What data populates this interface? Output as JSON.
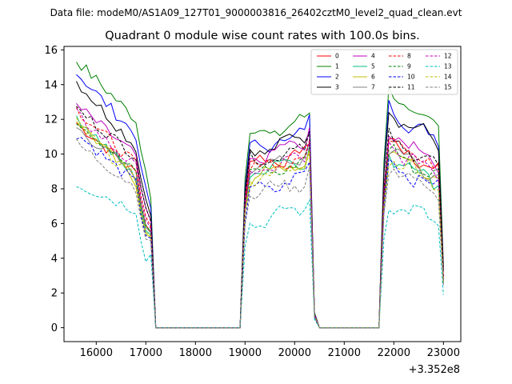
{
  "suptitle": "Data file: modeM0/AS1A09_127T01_9000003816_26402cztM0_level2_quad_clean.evt",
  "chart_data": {
    "type": "line",
    "title": "Quadrant 0 module wise count rates with 100.0s bins.",
    "xlabel": "",
    "ylabel": "",
    "x_offset_label": "+3.352e8",
    "xlim": [
      15350,
      23350
    ],
    "ylim": [
      -0.8,
      16.2
    ],
    "xticks": [
      16000,
      17000,
      18000,
      19000,
      20000,
      21000,
      22000,
      23000
    ],
    "yticks": [
      0,
      2,
      4,
      6,
      8,
      10,
      12,
      14,
      16
    ],
    "legend_position": "top-right",
    "segments": [
      {
        "start": 15600,
        "end": 17100,
        "level_end": 16800
      },
      {
        "start": 19000,
        "end": 20300
      },
      {
        "start": 21800,
        "end": 23000
      }
    ],
    "series": [
      {
        "name": "0",
        "color": "#ff0000",
        "style": "solid",
        "base": 10.4,
        "s1": [
          11.8,
          8.9
        ],
        "s2": 9.3,
        "s3": 10.8
      },
      {
        "name": "1",
        "color": "#008000",
        "style": "solid",
        "base": 13.0,
        "s1": [
          15.4,
          12.0
        ],
        "s2": 11.0,
        "s3": 13.6
      },
      {
        "name": "2",
        "color": "#0000ff",
        "style": "solid",
        "base": 11.9,
        "s1": [
          14.7,
          11.1
        ],
        "s2": 10.3,
        "s3": 12.8
      },
      {
        "name": "3",
        "color": "#000000",
        "style": "solid",
        "base": 12.1,
        "s1": [
          14.2,
          10.4
        ],
        "s2": 10.1,
        "s3": 12.7
      },
      {
        "name": "4",
        "color": "#bf00bf",
        "style": "solid",
        "base": 11.1,
        "s1": [
          12.8,
          9.9
        ],
        "s2": 9.7,
        "s3": 11.4
      },
      {
        "name": "5",
        "color": "#00bf80",
        "style": "solid",
        "base": 10.0,
        "s1": [
          12.2,
          8.6
        ],
        "s2": 8.9,
        "s3": 10.1
      },
      {
        "name": "6",
        "color": "#bfbf00",
        "style": "solid",
        "base": 9.9,
        "s1": [
          12.0,
          8.4
        ],
        "s2": 8.6,
        "s3": 10.3
      },
      {
        "name": "7",
        "color": "#808080",
        "style": "solid",
        "base": 10.4,
        "s1": [
          11.5,
          8.8
        ],
        "s2": 9.1,
        "s3": 10.5
      },
      {
        "name": "8",
        "color": "#ff0000",
        "style": "dashed",
        "base": 10.5,
        "s1": [
          12.6,
          9.4
        ],
        "s2": 9.0,
        "s3": 11.1
      },
      {
        "name": "9",
        "color": "#008000",
        "style": "dashed",
        "base": 10.1,
        "s1": [
          12.0,
          8.9
        ],
        "s2": 8.7,
        "s3": 10.4
      },
      {
        "name": "10",
        "color": "#0000ff",
        "style": "dashed",
        "base": 9.3,
        "s1": [
          11.2,
          8.3
        ],
        "s2": 7.8,
        "s3": 9.6
      },
      {
        "name": "11",
        "color": "#000000",
        "style": "dashed",
        "base": 10.9,
        "s1": [
          12.6,
          9.9
        ],
        "s2": 9.5,
        "s3": 11.1
      },
      {
        "name": "12",
        "color": "#bf00bf",
        "style": "dashed",
        "base": 10.2,
        "s1": [
          12.3,
          9.2
        ],
        "s2": 8.9,
        "s3": 10.6
      },
      {
        "name": "13",
        "color": "#00bfbf",
        "style": "dashed",
        "base": 7.1,
        "s1": [
          8.3,
          6.8
        ],
        "s2": 6.0,
        "s3": 7.3
      },
      {
        "name": "14",
        "color": "#bfbf00",
        "style": "dashed",
        "base": 9.7,
        "s1": [
          11.8,
          8.5
        ],
        "s2": 8.5,
        "s3": 10.0
      },
      {
        "name": "15",
        "color": "#808080",
        "style": "dashed",
        "base": 9.1,
        "s1": [
          10.6,
          8.1
        ],
        "s2": 7.6,
        "s3": 9.3
      }
    ]
  }
}
